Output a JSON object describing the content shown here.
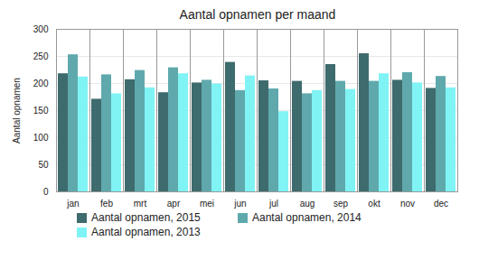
{
  "chart_data": {
    "type": "bar",
    "title": "Aantal opnamen per maand",
    "y_label": "Aantal opnamen",
    "categories": [
      "jan",
      "feb",
      "mrt",
      "apr",
      "mei",
      "jun",
      "jul",
      "aug",
      "sep",
      "okt",
      "nov",
      "dec"
    ],
    "series": [
      {
        "name": "Aantal opnamen, 2015",
        "color": "#3e6b6d",
        "values": [
          218,
          171,
          207,
          183,
          201,
          239,
          205,
          204,
          235,
          255,
          206,
          191
        ]
      },
      {
        "name": "Aantal opnamen, 2014",
        "color": "#5fa9ad",
        "values": [
          253,
          216,
          224,
          229,
          206,
          187,
          190,
          181,
          204,
          204,
          220,
          213
        ]
      },
      {
        "name": "Aantal opnamen, 2013",
        "color": "#80f3f5",
        "values": [
          212,
          181,
          192,
          218,
          199,
          214,
          148,
          187,
          189,
          218,
          201,
          192
        ]
      }
    ],
    "ylim": [
      0,
      300
    ],
    "yticks": [
      0,
      50,
      100,
      150,
      200,
      250,
      300
    ],
    "grid": true,
    "legend": "bottom"
  }
}
